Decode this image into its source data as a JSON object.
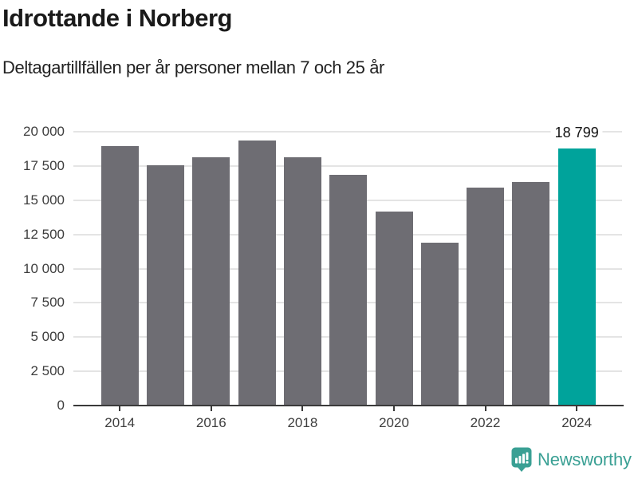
{
  "header": {
    "title": "Idrottande i Norberg",
    "subtitle": "Deltagartillfällen per år personer mellan 7 och 25 år"
  },
  "chart_data": {
    "type": "bar",
    "title": "Idrottande i Norberg",
    "subtitle": "Deltagartillfällen per år personer mellan 7 och 25 år",
    "categories": [
      "2014",
      "2015",
      "2016",
      "2017",
      "2018",
      "2019",
      "2020",
      "2021",
      "2022",
      "2023",
      "2024"
    ],
    "values": [
      18950,
      17550,
      18150,
      19350,
      18150,
      16850,
      14150,
      11900,
      15900,
      16350,
      18799
    ],
    "highlight_index": 10,
    "highlight_value_label": "18 799",
    "bar_color": "#6e6d73",
    "highlight_color": "#00a39b",
    "xlabel": "",
    "ylabel": "",
    "ylim": [
      0,
      20000
    ],
    "y_ticks": [
      0,
      2500,
      5000,
      7500,
      10000,
      12500,
      15000,
      17500,
      20000
    ],
    "x_tick_labels": [
      "2014",
      "2016",
      "2018",
      "2020",
      "2022",
      "2024"
    ],
    "grid": "horizontal",
    "legend": "none"
  },
  "footer": {
    "brand": "Newsworthy",
    "brand_color": "#3aa094"
  }
}
